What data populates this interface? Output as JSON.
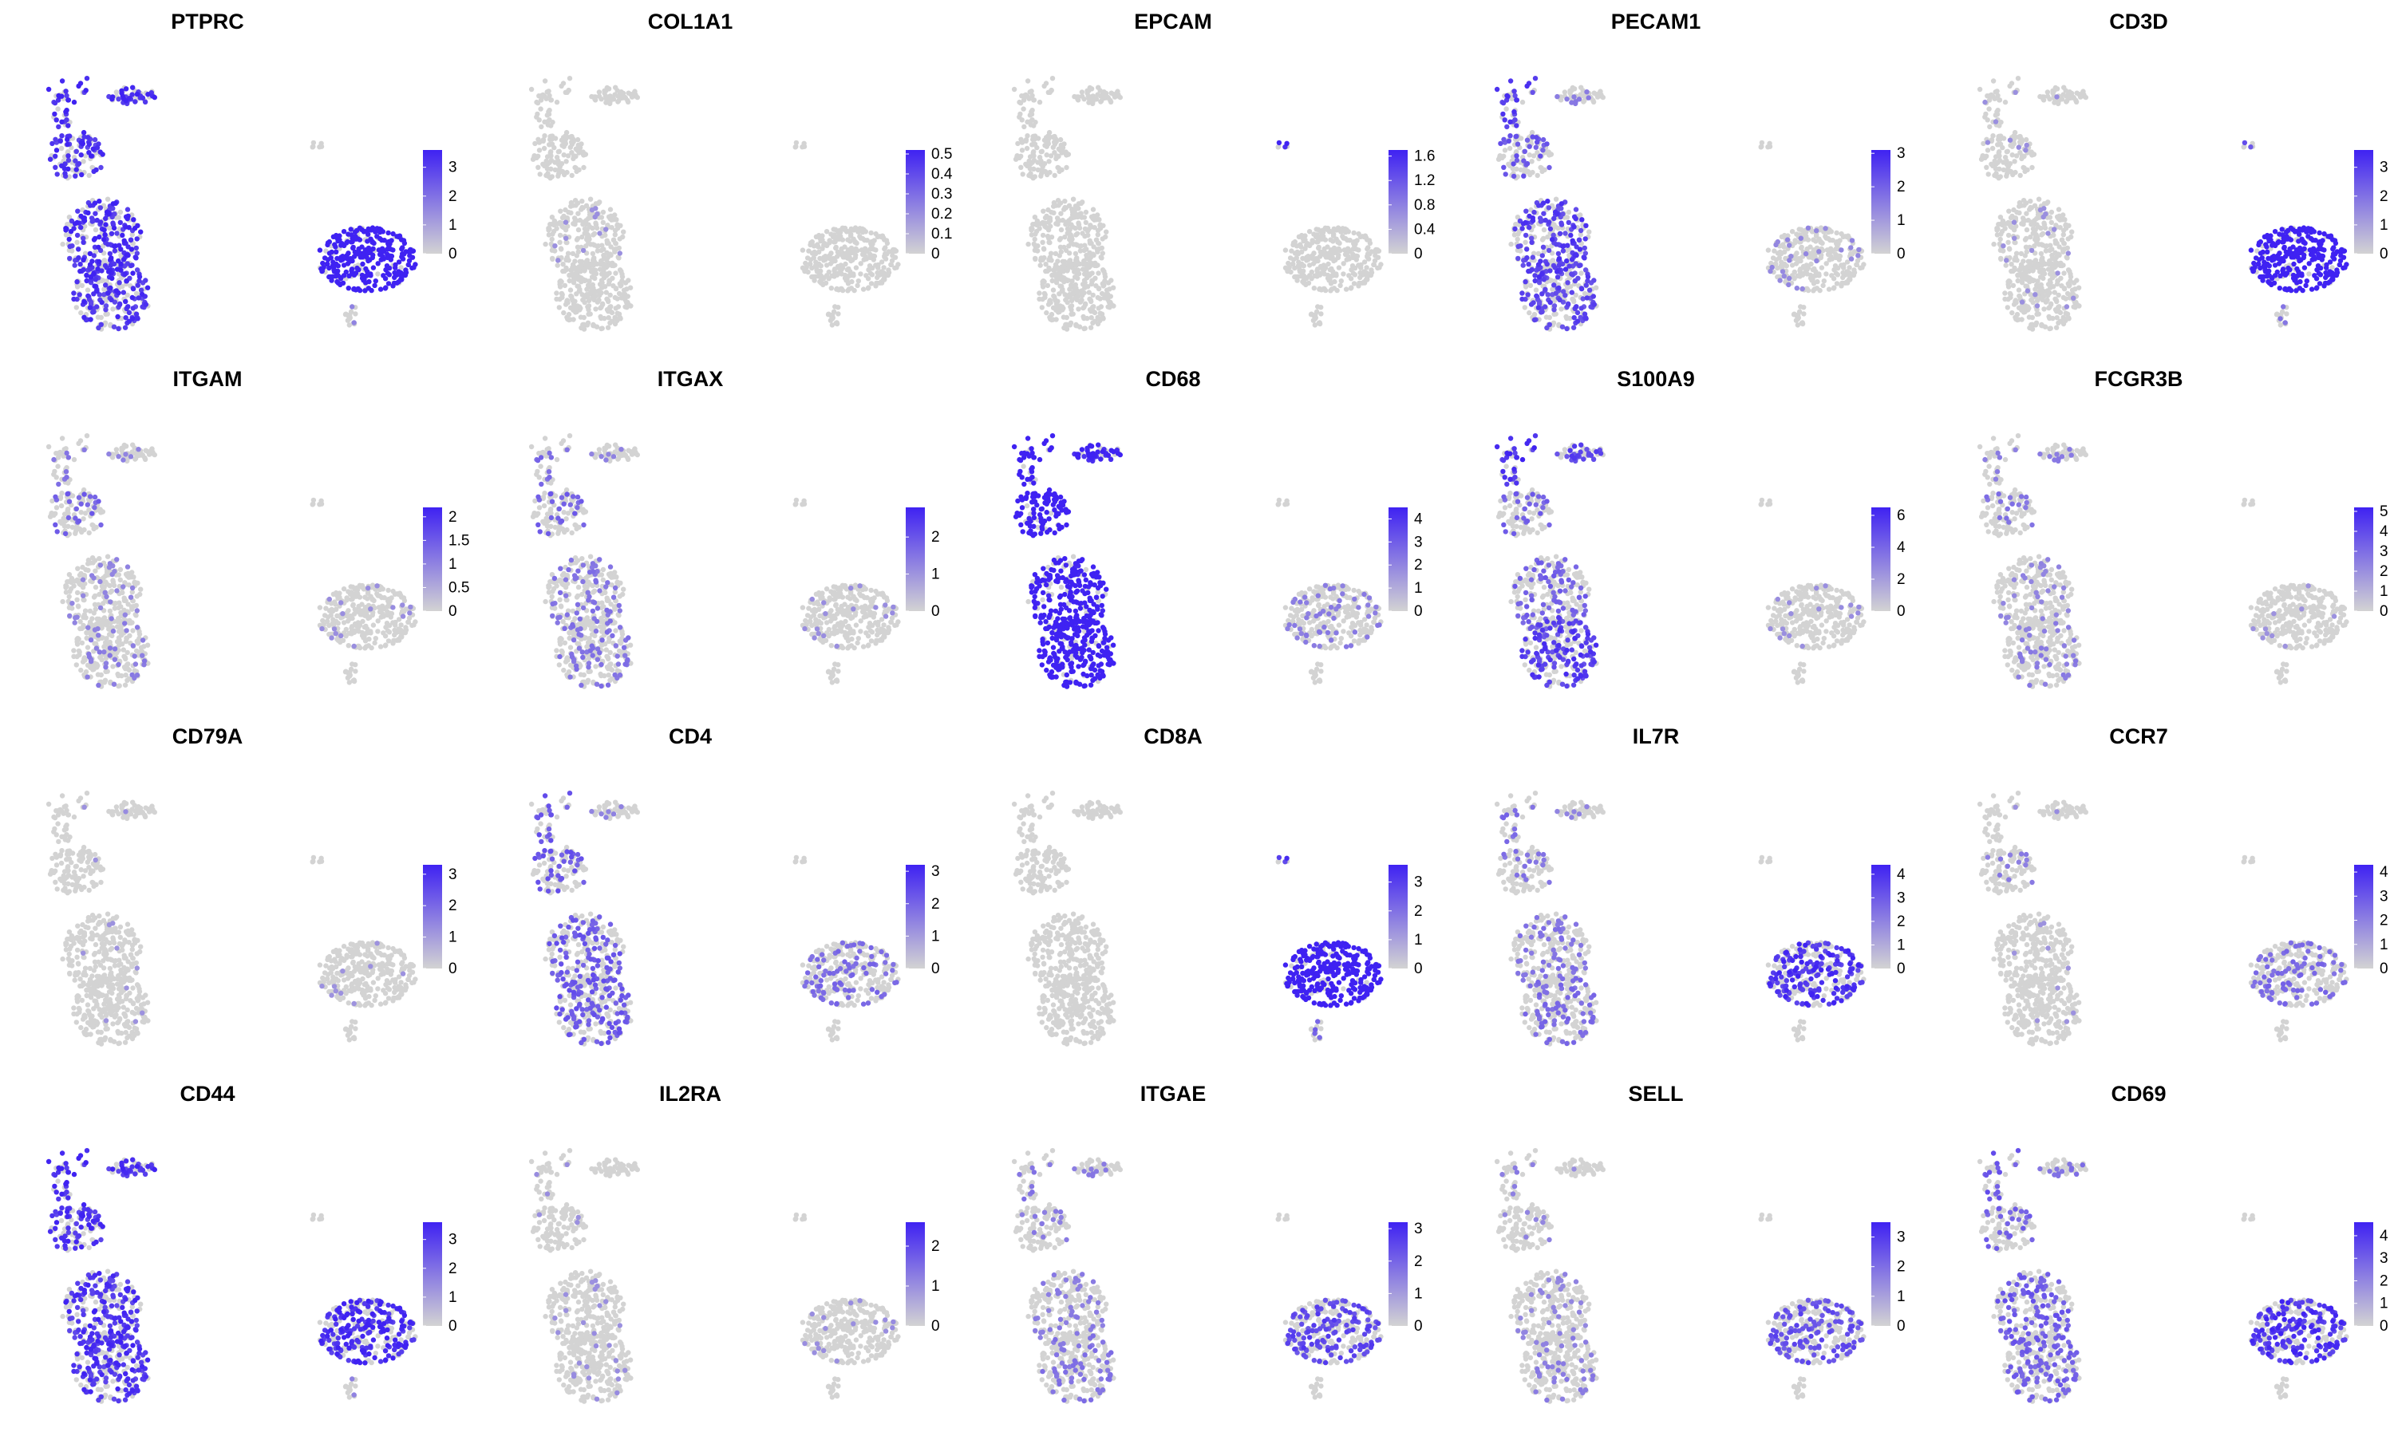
{
  "colors": {
    "low": "#D3D3D3",
    "high": "#3F22F2"
  },
  "chart_data": [
    {
      "type": "scatter",
      "title": "PTPRC",
      "legend_ticks": [
        0,
        1,
        2,
        3
      ],
      "max": 3.6,
      "pattern": [
        0.55,
        0.6,
        0.6,
        0.55,
        0.6,
        0.85,
        0.0,
        0.1
      ]
    },
    {
      "type": "scatter",
      "title": "COL1A1",
      "legend_ticks": [
        0.0,
        0.1,
        0.2,
        0.3,
        0.4,
        0.5
      ],
      "max": 0.52,
      "pattern": [
        0,
        0,
        0.03,
        0,
        0,
        0,
        0.05,
        0
      ]
    },
    {
      "type": "scatter",
      "title": "EPCAM",
      "legend_ticks": [
        0.0,
        0.4,
        0.8,
        1.2,
        1.6
      ],
      "max": 1.7,
      "pattern": [
        0,
        0,
        0,
        0,
        0,
        0,
        0.7,
        0
      ]
    },
    {
      "type": "scatter",
      "title": "PECAM1",
      "legend_ticks": [
        0,
        1,
        2,
        3
      ],
      "max": 3.1,
      "pattern": [
        0.35,
        0.15,
        0.5,
        0.45,
        0.5,
        0.08,
        0.0,
        0.05
      ]
    },
    {
      "type": "scatter",
      "title": "CD3D",
      "legend_ticks": [
        0,
        1,
        2,
        3
      ],
      "max": 3.6,
      "pattern": [
        0.05,
        0.05,
        0.03,
        0.03,
        0.03,
        0.85,
        0.4,
        0.2
      ]
    },
    {
      "type": "scatter",
      "title": "ITGAM",
      "legend_ticks": [
        0.0,
        0.5,
        1.0,
        1.5,
        2.0
      ],
      "max": 2.2,
      "pattern": [
        0.3,
        0.1,
        0.1,
        0.15,
        0.2,
        0.05,
        0.0,
        0.0
      ]
    },
    {
      "type": "scatter",
      "title": "ITGAX",
      "legend_ticks": [
        0,
        1,
        2
      ],
      "max": 2.8,
      "pattern": [
        0.3,
        0.1,
        0.2,
        0.2,
        0.25,
        0.05,
        0.0,
        0.0
      ]
    },
    {
      "type": "scatter",
      "title": "CD68",
      "legend_ticks": [
        0,
        1,
        2,
        3,
        4
      ],
      "max": 4.5,
      "pattern": [
        0.85,
        0.7,
        0.8,
        0.85,
        0.85,
        0.15,
        0.0,
        0.0
      ]
    },
    {
      "type": "scatter",
      "title": "S100A9",
      "legend_ticks": [
        0,
        2,
        4,
        6
      ],
      "max": 6.5,
      "pattern": [
        0.3,
        0.45,
        0.3,
        0.5,
        0.55,
        0.05,
        0.0,
        0.0
      ]
    },
    {
      "type": "scatter",
      "title": "FCGR3B",
      "legend_ticks": [
        0,
        1,
        2,
        3,
        4,
        5
      ],
      "max": 5.2,
      "pattern": [
        0.2,
        0.15,
        0.1,
        0.15,
        0.15,
        0.02,
        0.0,
        0.0
      ]
    },
    {
      "type": "scatter",
      "title": "CD79A",
      "legend_ticks": [
        0,
        1,
        2,
        3
      ],
      "max": 3.3,
      "pattern": [
        0.02,
        0.05,
        0.02,
        0.02,
        0.02,
        0.02,
        0.0,
        0.0
      ]
    },
    {
      "type": "scatter",
      "title": "CD4",
      "legend_ticks": [
        0,
        1,
        2,
        3
      ],
      "max": 3.2,
      "pattern": [
        0.35,
        0.1,
        0.35,
        0.35,
        0.35,
        0.25,
        0.0,
        0.0
      ]
    },
    {
      "type": "scatter",
      "title": "CD8A",
      "legend_ticks": [
        0,
        1,
        2,
        3
      ],
      "max": 3.6,
      "pattern": [
        0.0,
        0.0,
        0.0,
        0.0,
        0.0,
        0.85,
        0.5,
        0.3
      ]
    },
    {
      "type": "scatter",
      "title": "IL7R",
      "legend_ticks": [
        0,
        1,
        2,
        3,
        4
      ],
      "max": 4.4,
      "pattern": [
        0.2,
        0.1,
        0.2,
        0.25,
        0.25,
        0.55,
        0.0,
        0.0
      ]
    },
    {
      "type": "scatter",
      "title": "CCR7",
      "legend_ticks": [
        0,
        1,
        2,
        3,
        4
      ],
      "max": 4.3,
      "pattern": [
        0.15,
        0.05,
        0.02,
        0.02,
        0.02,
        0.25,
        0.0,
        0.0
      ]
    },
    {
      "type": "scatter",
      "title": "CD44",
      "legend_ticks": [
        0,
        1,
        2,
        3
      ],
      "max": 3.6,
      "pattern": [
        0.55,
        0.55,
        0.55,
        0.55,
        0.6,
        0.6,
        0.05,
        0.1
      ]
    },
    {
      "type": "scatter",
      "title": "IL2RA",
      "legend_ticks": [
        0,
        1,
        2
      ],
      "max": 2.6,
      "pattern": [
        0.03,
        0.0,
        0.03,
        0.05,
        0.05,
        0.05,
        0.0,
        0.0
      ]
    },
    {
      "type": "scatter",
      "title": "ITGAE",
      "legend_ticks": [
        0,
        1,
        2,
        3
      ],
      "max": 3.2,
      "pattern": [
        0.15,
        0.15,
        0.15,
        0.2,
        0.2,
        0.45,
        0.0,
        0.0
      ]
    },
    {
      "type": "scatter",
      "title": "SELL",
      "legend_ticks": [
        0,
        1,
        2,
        3
      ],
      "max": 3.5,
      "pattern": [
        0.1,
        0.05,
        0.1,
        0.15,
        0.15,
        0.4,
        0.05,
        0.0
      ]
    },
    {
      "type": "scatter",
      "title": "CD69",
      "legend_ticks": [
        0,
        1,
        2,
        3,
        4
      ],
      "max": 4.6,
      "pattern": [
        0.3,
        0.2,
        0.35,
        0.3,
        0.35,
        0.55,
        0.0,
        0.0
      ]
    }
  ]
}
